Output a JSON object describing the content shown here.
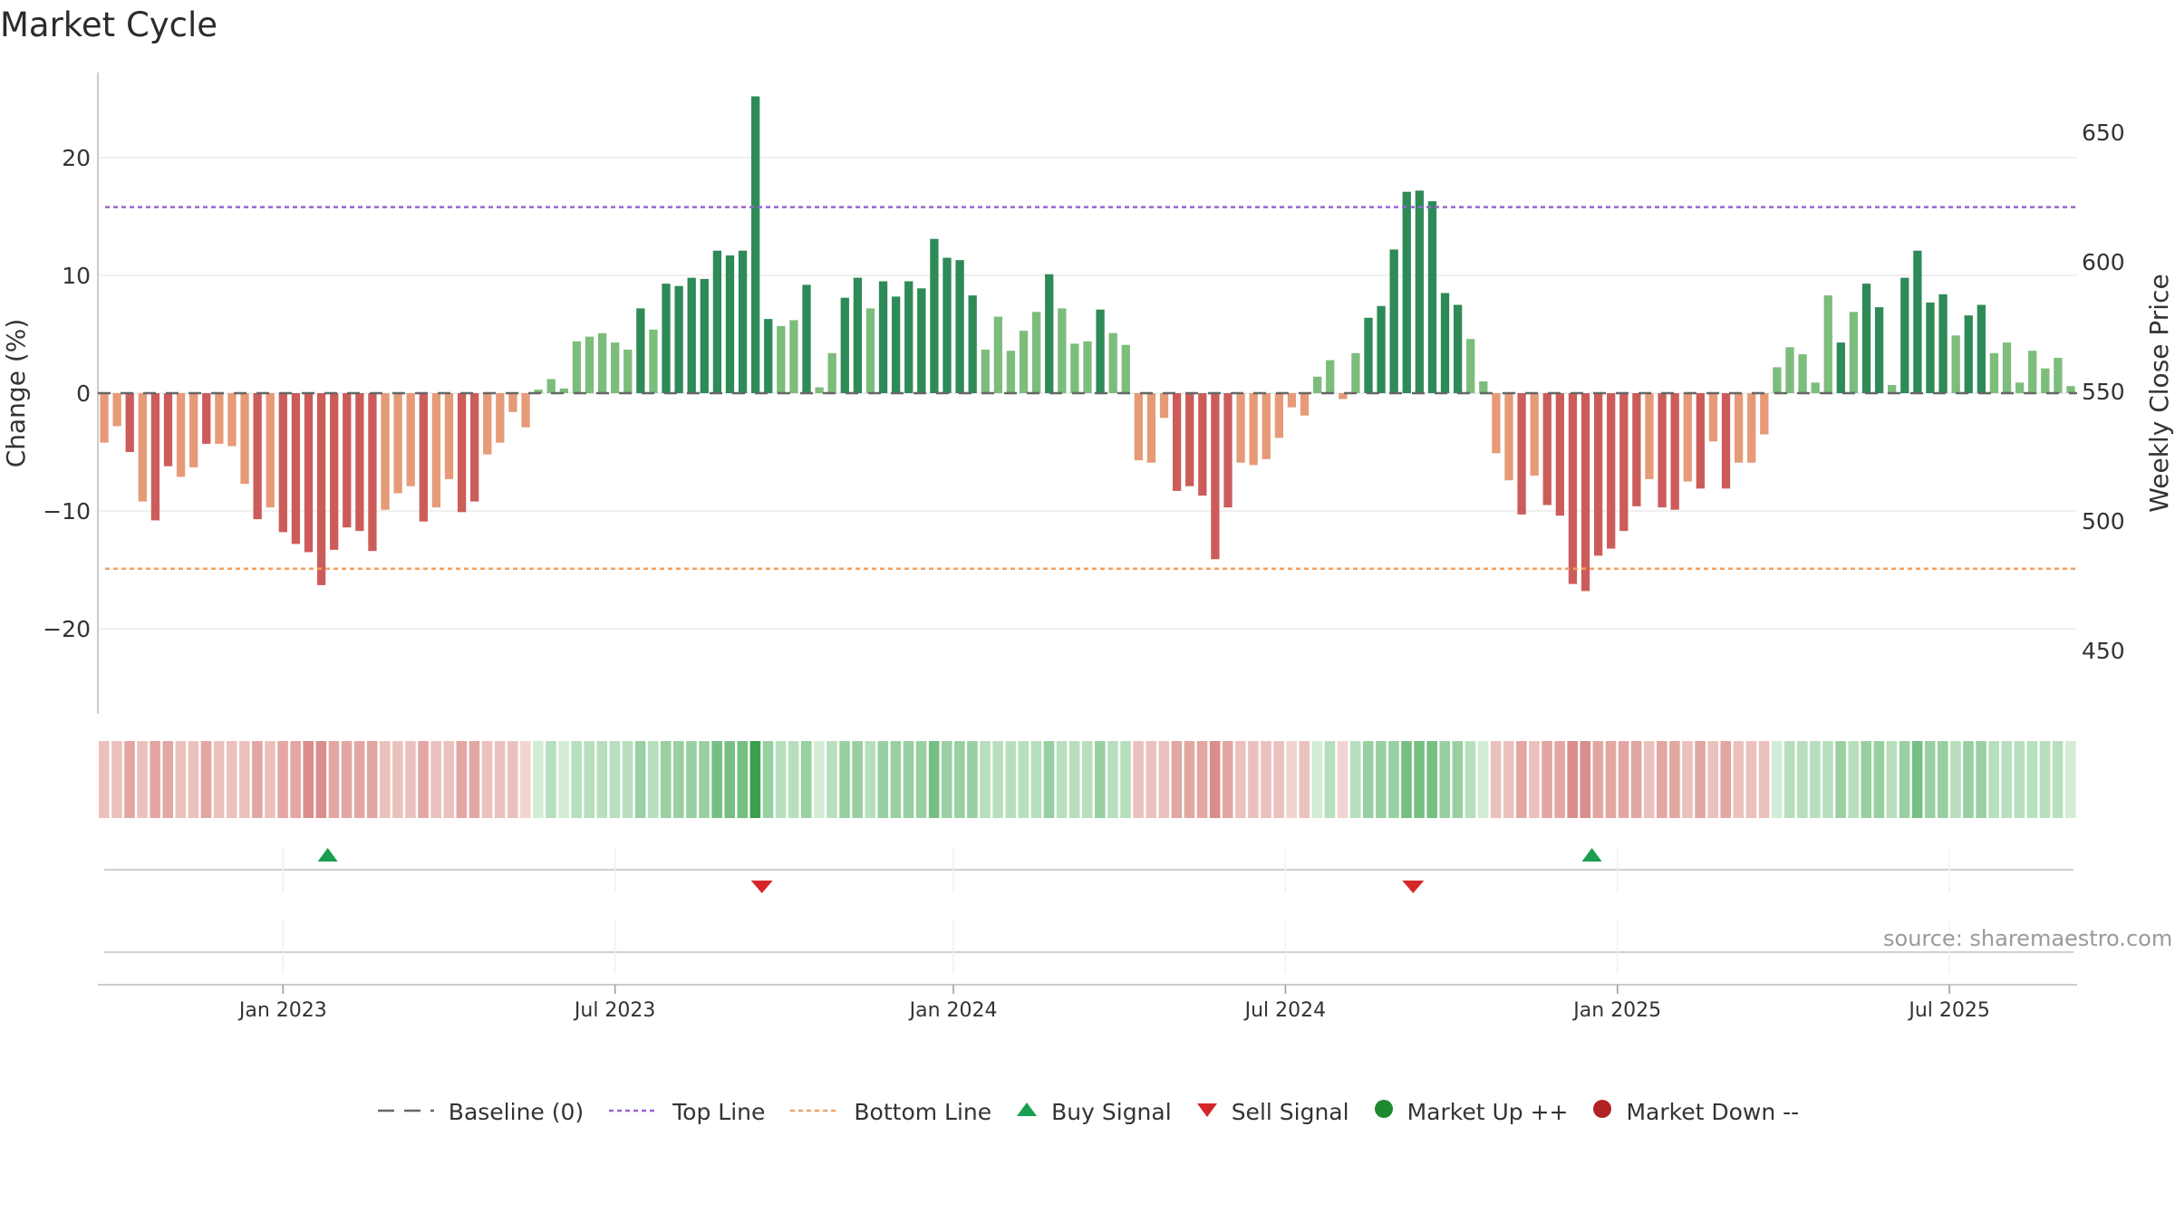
{
  "title": "Market Cycle",
  "source": "source: sharemaestro.com",
  "colors": {
    "up_dark": "#2e8a57",
    "up_light": "#7cbd7c",
    "down_dark": "#cc5c5a",
    "down_light": "#e69a77",
    "top_line": "#9b63d0",
    "bottom_line": "#f0a060",
    "buy": "#1a9e50",
    "sell": "#d62728",
    "market_up": "#1e8a2e",
    "market_down": "#b22222",
    "baseline": "#666666"
  },
  "chart_data": {
    "type": "bar",
    "title": "Market Cycle",
    "ylabel": "Change (%)",
    "y2label": "Weekly Close Price",
    "ylim": [
      -27,
      27
    ],
    "y2lim": [
      420,
      670
    ],
    "yticks": [
      20,
      10,
      0,
      -10,
      -20
    ],
    "ytick_labels": [
      "20",
      "10",
      "0",
      "−10",
      "−20"
    ],
    "y2ticks": [
      650,
      600,
      550,
      500,
      450
    ],
    "y2tick_labels": [
      "650",
      "600",
      "550",
      "500",
      "450"
    ],
    "xlabels": [
      "Jan 2023",
      "Jul 2023",
      "Jan 2024",
      "Jul 2024",
      "Jan 2025",
      "Jul 2025"
    ],
    "xlabel_index": [
      14,
      40,
      66.5,
      92.5,
      118.5,
      144.5
    ],
    "top_line": 15.8,
    "bottom_line": -14.9,
    "baseline": 0,
    "values": [
      -4.2,
      -2.8,
      -5,
      -9.2,
      -10.8,
      -6.2,
      -7.1,
      -6.3,
      -4.3,
      -4.3,
      -4.5,
      -7.7,
      -10.7,
      -9.7,
      -11.8,
      -12.8,
      -13.5,
      -16.3,
      -13.3,
      -11.4,
      -11.7,
      -13.4,
      -9.9,
      -8.5,
      -7.9,
      -10.9,
      -9.7,
      -7.3,
      -10.1,
      -9.2,
      -5.2,
      -4.2,
      -1.6,
      -2.9,
      0.3,
      1.2,
      0.4,
      4.4,
      4.8,
      5.1,
      4.3,
      3.7,
      7.2,
      5.4,
      9.3,
      9.1,
      9.8,
      9.7,
      12.1,
      11.7,
      12.1,
      25.2,
      6.3,
      5.7,
      6.2,
      9.2,
      0.5,
      3.4,
      8.1,
      9.8,
      7.2,
      9.5,
      8.2,
      9.5,
      8.9,
      13.1,
      11.5,
      11.3,
      8.3,
      3.7,
      6.5,
      3.6,
      5.3,
      6.9,
      10.1,
      7.2,
      4.2,
      4.4,
      7.1,
      5.1,
      4.1,
      -5.7,
      -5.9,
      -2.1,
      -8.3,
      -7.9,
      -8.7,
      -14.1,
      -9.7,
      -5.9,
      -6.1,
      -5.6,
      -3.8,
      -1.2,
      -1.9,
      1.4,
      2.8,
      -0.5,
      3.4,
      6.4,
      7.4,
      12.2,
      17.1,
      17.2,
      16.3,
      8.5,
      7.5,
      4.6,
      1,
      -5.1,
      -7.4,
      -10.3,
      -7,
      -9.5,
      -10.4,
      -16.2,
      -16.8,
      -13.8,
      -13.2,
      -11.7,
      -9.6,
      -7.3,
      -9.7,
      -9.9,
      -7.5,
      -8.1,
      -4.1,
      -8.1,
      -5.9,
      -5.9,
      -3.5,
      2.2,
      3.9,
      3.3,
      0.9,
      8.3,
      4.3,
      6.9,
      9.3,
      7.3,
      0.7,
      9.8,
      12.1,
      7.7,
      8.4,
      4.9,
      6.6,
      7.5,
      3.4,
      4.3,
      0.9,
      3.6,
      2.1,
      3,
      0.6
    ],
    "shade": [
      1,
      1,
      2,
      1,
      2,
      2,
      1,
      1,
      2,
      1,
      1,
      1,
      2,
      1,
      2,
      2,
      3,
      3,
      2,
      2,
      2,
      2,
      1,
      1,
      1,
      2,
      1,
      1,
      2,
      2,
      1,
      1,
      1,
      0,
      0,
      1,
      0,
      1,
      1,
      1,
      1,
      1,
      2,
      1,
      2,
      2,
      2,
      2,
      3,
      3,
      3,
      4,
      2,
      1,
      1,
      2,
      0,
      1,
      2,
      2,
      1,
      2,
      2,
      2,
      2,
      3,
      2,
      2,
      2,
      1,
      1,
      1,
      1,
      1,
      2,
      1,
      1,
      1,
      2,
      1,
      1,
      1,
      1,
      1,
      2,
      2,
      2,
      3,
      2,
      1,
      1,
      1,
      1,
      0,
      1,
      0,
      1,
      0,
      1,
      2,
      2,
      2,
      3,
      3,
      3,
      2,
      2,
      1,
      0,
      1,
      1,
      2,
      1,
      2,
      2,
      3,
      3,
      2,
      2,
      2,
      2,
      1,
      2,
      2,
      1,
      2,
      1,
      2,
      1,
      1,
      1,
      0,
      1,
      1,
      1,
      1,
      2,
      1,
      2,
      2,
      1,
      2,
      3,
      2,
      2,
      1,
      2,
      2,
      1,
      1,
      1,
      1,
      1,
      1,
      0
    ],
    "price_visible": false,
    "buy_signals": [
      17.5,
      116.5
    ],
    "sell_signals": [
      51.5,
      102.5
    ]
  },
  "legend": [
    {
      "name": "baseline",
      "label": "Baseline (0)"
    },
    {
      "name": "top-line",
      "label": "Top Line"
    },
    {
      "name": "bottom-line",
      "label": "Bottom Line"
    },
    {
      "name": "buy-signal",
      "label": "Buy Signal"
    },
    {
      "name": "sell-signal",
      "label": "Sell Signal"
    },
    {
      "name": "market-up",
      "label": "Market Up ++"
    },
    {
      "name": "market-down",
      "label": "Market Down --"
    }
  ]
}
